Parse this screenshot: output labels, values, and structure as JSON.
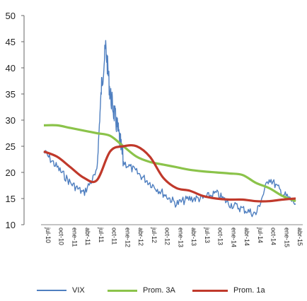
{
  "chart_data": {
    "type": "line",
    "title": "",
    "xlabel": "",
    "ylabel": "",
    "ylim": [
      10,
      50
    ],
    "yticks": [
      10,
      15,
      20,
      25,
      30,
      35,
      40,
      45,
      50
    ],
    "xtick_labels": [
      "jul-10",
      "oct-10",
      "ene-11",
      "abr-11",
      "jul-11",
      "oct-11",
      "ene-12",
      "abr-12",
      "jul-12",
      "oct-12",
      "ene-13",
      "abr-13",
      "jul-13",
      "oct-13",
      "ene-14",
      "abr-14",
      "jul-14",
      "oct-14",
      "ene-15",
      "abr-15"
    ],
    "legend_position": "bottom",
    "series": [
      {
        "name": "VIX",
        "color": "#4f7fc0",
        "x": [
          "jul-10",
          "oct-10",
          "ene-11",
          "abr-11",
          "jul-11",
          "ago-11",
          "sep-11",
          "oct-11",
          "nov-11",
          "dic-11",
          "ene-12",
          "abr-12",
          "jul-12",
          "oct-12",
          "ene-13",
          "abr-13",
          "jul-13",
          "oct-13",
          "ene-14",
          "abr-14",
          "jul-14",
          "oct-14",
          "ene-15",
          "abr-15"
        ],
        "values": [
          24,
          21,
          18,
          16,
          20,
          36,
          44,
          35,
          31,
          27,
          22,
          20,
          18,
          16,
          14,
          15,
          15,
          16,
          14,
          13,
          12,
          19,
          16,
          14
        ]
      },
      {
        "name": "Prom. 3A",
        "color": "#8bc34a",
        "x": [
          "jul-10",
          "oct-10",
          "ene-11",
          "abr-11",
          "jul-11",
          "oct-11",
          "ene-12",
          "abr-12",
          "jul-12",
          "oct-12",
          "ene-13",
          "abr-13",
          "jul-13",
          "oct-13",
          "ene-14",
          "abr-14",
          "jul-14",
          "oct-14",
          "ene-15",
          "abr-15"
        ],
        "values": [
          29,
          29,
          28.5,
          28,
          27.5,
          27,
          25,
          23,
          22,
          21.5,
          21,
          20.5,
          20.2,
          20,
          19.8,
          19.5,
          18,
          17,
          15.5,
          14.5
        ]
      },
      {
        "name": "Prom. 1a",
        "color": "#c0392b",
        "x": [
          "jul-10",
          "oct-10",
          "ene-11",
          "abr-11",
          "jul-11",
          "oct-11",
          "ene-12",
          "abr-12",
          "jul-12",
          "oct-12",
          "ene-13",
          "abr-13",
          "jul-13",
          "oct-13",
          "ene-14",
          "abr-14",
          "jul-14",
          "oct-14",
          "ene-15",
          "abr-15"
        ],
        "values": [
          24,
          23,
          21,
          19,
          18.5,
          24,
          25,
          25,
          23,
          19,
          17,
          16.5,
          15.5,
          15,
          14.8,
          14.8,
          14.5,
          14.5,
          14.8,
          15
        ]
      }
    ]
  }
}
